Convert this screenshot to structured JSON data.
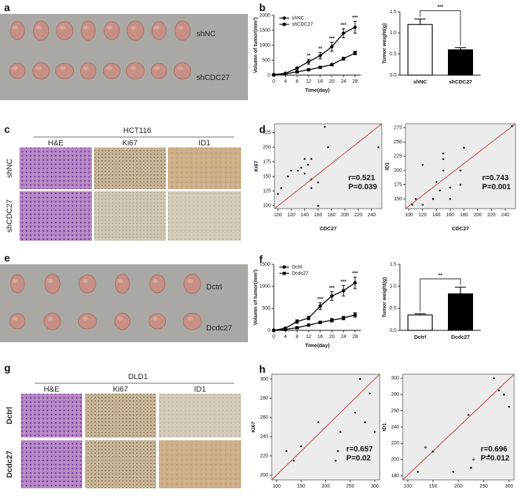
{
  "panels": [
    "a",
    "b",
    "c",
    "d",
    "e",
    "f",
    "g",
    "h"
  ],
  "photos": {
    "a": {
      "rows": [
        "shNC",
        "shCDC27"
      ]
    },
    "c": {
      "title": "HCT116",
      "columns": [
        "H&E",
        "Ki67",
        "ID1"
      ],
      "rows": [
        "shNC",
        "shCDC27"
      ]
    },
    "e": {
      "rows": [
        "Dctrl",
        "Dcdc27"
      ]
    },
    "g": {
      "title": "DLD1",
      "columns": [
        "H&E",
        "Ki67",
        "ID1"
      ],
      "rows": [
        "Dctrl",
        "Dcdc27"
      ]
    }
  },
  "chart_data": [
    {
      "type": "line",
      "x": [
        0,
        4,
        8,
        12,
        16,
        20,
        24,
        28
      ],
      "xlim": [
        0,
        30
      ],
      "xticks": [
        0,
        4,
        8,
        12,
        16,
        20,
        24,
        28
      ],
      "ylim": [
        0,
        2000
      ],
      "yticks": [
        0,
        500,
        1000,
        1500,
        2000
      ],
      "xlabel": "Time(day)",
      "ylabel": "Volumn of tumor(mm³)",
      "legend": "upper left",
      "series": [
        {
          "name": "shNC",
          "color": "#000000",
          "marker": "diamond",
          "values": [
            20,
            60,
            230,
            450,
            650,
            950,
            1400,
            1600
          ],
          "errors": [
            5,
            15,
            40,
            80,
            110,
            150,
            150,
            200
          ]
        },
        {
          "name": "shCDC27",
          "color": "#000000",
          "marker": "square",
          "values": [
            10,
            40,
            110,
            180,
            260,
            350,
            550,
            740
          ],
          "errors": [
            5,
            10,
            20,
            25,
            30,
            40,
            50,
            60
          ]
        }
      ],
      "significance": [
        null,
        null,
        null,
        "**",
        "**",
        "***",
        "***",
        "***"
      ]
    },
    {
      "type": "bar",
      "categories": [
        "shNC",
        "shCDC27"
      ],
      "values": [
        1.2,
        0.6
      ],
      "errors": [
        0.13,
        0.05
      ],
      "colors": [
        "#ffffff",
        "#000000"
      ],
      "ylim": [
        0,
        1.5
      ],
      "yticks": [
        {
          "value": 0,
          "label": "0.0"
        },
        {
          "value": 0.5,
          "label": "0.5"
        },
        {
          "value": 1,
          "label": "1.0"
        },
        {
          "value": 1.5,
          "label": "1.5"
        }
      ],
      "ylabel": "Tumor weight(g)",
      "significance": "***"
    },
    {
      "type": "scatter",
      "x": [
        100,
        105,
        115,
        120,
        130,
        135,
        140,
        145,
        150,
        150,
        150,
        140,
        160,
        160,
        170,
        175,
        250
      ],
      "values": [
        120,
        130,
        150,
        160,
        160,
        165,
        180,
        170,
        180,
        130,
        145,
        155,
        140,
        100,
        235,
        200,
        200
      ],
      "xlim": [
        95,
        255
      ],
      "xticks": [
        100,
        120,
        140,
        160,
        180,
        200,
        220,
        240
      ],
      "ylim": [
        95,
        240
      ],
      "yticks": [
        100,
        125,
        150,
        175,
        200,
        225
      ],
      "xlabel": "CDC27",
      "ylabel": "Ki67",
      "annotations": [
        "r=0.521",
        "P=0.039"
      ],
      "line_color": "#c0392b",
      "background": "#ececec"
    },
    {
      "type": "scatter",
      "x": [
        105,
        110,
        120,
        120,
        135,
        140,
        145,
        150,
        150,
        150,
        160,
        160,
        175,
        175,
        180,
        250
      ],
      "values": [
        140,
        150,
        210,
        140,
        150,
        180,
        165,
        230,
        220,
        200,
        150,
        170,
        175,
        200,
        240,
        278
      ],
      "xlim": [
        95,
        255
      ],
      "xticks": [
        100,
        120,
        140,
        160,
        180,
        200,
        220,
        240
      ],
      "ylim": [
        133,
        282
      ],
      "yticks": [
        150,
        175,
        200,
        225,
        250,
        275
      ],
      "xlabel": "CDC27",
      "ylabel": "ID1",
      "annotations": [
        "r=0.743",
        "P=0.001"
      ],
      "line_color": "#c0392b",
      "background": "#ececec"
    },
    {
      "type": "line",
      "x": [
        0,
        4,
        8,
        12,
        16,
        20,
        24,
        28
      ],
      "xlim": [
        0,
        30
      ],
      "xticks": [
        0,
        4,
        8,
        12,
        16,
        20,
        24,
        28
      ],
      "ylim": [
        0,
        1500
      ],
      "yticks": [
        0,
        500,
        1000,
        1500
      ],
      "xlabel": "Time(day)",
      "ylabel": "Volumn of tumor(mm³)",
      "legend": "upper left",
      "series": [
        {
          "name": "Dctrl",
          "color": "#000000",
          "marker": "circle",
          "values": [
            0,
            50,
            200,
            280,
            550,
            780,
            900,
            1080
          ],
          "errors": [
            0,
            20,
            40,
            40,
            80,
            100,
            120,
            130
          ]
        },
        {
          "name": "Dcdc27",
          "color": "#000000",
          "marker": "square",
          "values": [
            0,
            20,
            60,
            120,
            180,
            230,
            280,
            350
          ],
          "errors": [
            0,
            10,
            20,
            20,
            30,
            40,
            40,
            50
          ]
        }
      ],
      "significance": [
        null,
        null,
        null,
        null,
        "***",
        "***",
        "***",
        "***"
      ]
    },
    {
      "type": "bar",
      "categories": [
        "Dctrl",
        "Dcdc27"
      ],
      "values": [
        0.35,
        0.83
      ],
      "errors": [
        0.03,
        0.15
      ],
      "colors": [
        "#ffffff",
        "#000000"
      ],
      "ylim": [
        0,
        1.5
      ],
      "yticks": [
        {
          "value": 0,
          "label": "0.0"
        },
        {
          "value": 0.5,
          "label": "0.5"
        },
        {
          "value": 1,
          "label": "1.0"
        },
        {
          "value": 1.5,
          "label": "1.5"
        }
      ],
      "ylabel": "Tumor weight(g)",
      "significance": "**"
    },
    {
      "type": "scatter",
      "x": [
        120,
        135,
        150,
        185,
        220,
        225,
        230,
        260,
        270,
        280,
        290,
        300
      ],
      "values": [
        225,
        215,
        230,
        255,
        215,
        225,
        245,
        265,
        300,
        255,
        285,
        245
      ],
      "xlim": [
        90,
        310
      ],
      "xticks": [
        100,
        150,
        200,
        250,
        300
      ],
      "ylim": [
        195,
        305
      ],
      "yticks": [
        200,
        220,
        240,
        260,
        280,
        300
      ],
      "xlabel": "CDC27",
      "ylabel": "Ki67",
      "annotations": [
        "r=0.657",
        "P=0.02"
      ],
      "line_color": "#c0392b",
      "background": "#ececec"
    },
    {
      "type": "scatter",
      "x": [
        120,
        135,
        150,
        190,
        220,
        225,
        230,
        260,
        270,
        280,
        290,
        300
      ],
      "values": [
        185,
        215,
        210,
        185,
        255,
        190,
        200,
        205,
        300,
        285,
        280,
        265
      ],
      "xlim": [
        90,
        310
      ],
      "xticks": [
        100,
        150,
        200,
        250,
        300
      ],
      "ylim": [
        175,
        305
      ],
      "yticks": [
        180,
        200,
        220,
        240,
        260,
        280,
        300
      ],
      "xlabel": "CDC27",
      "ylabel": "ID1",
      "annotations": [
        "r=0.696",
        "P=0.012"
      ],
      "line_color": "#c0392b",
      "background": "#ececec"
    }
  ]
}
